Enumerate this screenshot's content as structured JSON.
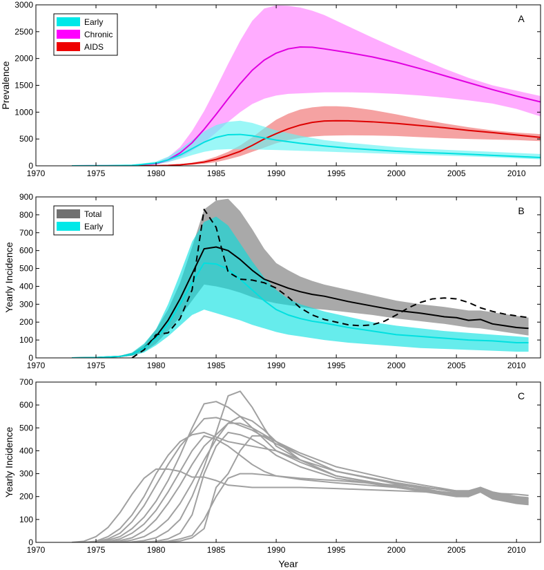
{
  "chart_data": [
    {
      "panel": "A",
      "type": "area",
      "panel_label": "A",
      "xlabel": "",
      "ylabel": "Prevalence",
      "xlim": [
        1970,
        2012
      ],
      "ylim": [
        0,
        3000
      ],
      "xticks": [
        1970,
        1975,
        1980,
        1985,
        1990,
        1995,
        2000,
        2005,
        2010
      ],
      "yticks": [
        0,
        500,
        1000,
        1500,
        2000,
        2500,
        3000
      ],
      "legend_position": "top-left",
      "series": [
        {
          "name": "Chronic",
          "color": "#e000e0",
          "band_color": "#ff80ff",
          "x": [
            1973,
            1976,
            1978,
            1980,
            1981,
            1982,
            1983,
            1984,
            1985,
            1986,
            1987,
            1988,
            1989,
            1990,
            1991,
            1992,
            1993,
            1994,
            1996,
            1998,
            2000,
            2002,
            2004,
            2006,
            2008,
            2010,
            2012
          ],
          "mean": [
            0,
            2,
            8,
            40,
            110,
            240,
            430,
            680,
            960,
            1250,
            1530,
            1780,
            1970,
            2100,
            2180,
            2215,
            2210,
            2180,
            2110,
            2030,
            1930,
            1810,
            1680,
            1550,
            1420,
            1300,
            1190
          ],
          "lower": [
            0,
            1,
            5,
            25,
            70,
            150,
            280,
            430,
            620,
            820,
            1000,
            1150,
            1250,
            1310,
            1340,
            1350,
            1360,
            1370,
            1370,
            1360,
            1340,
            1310,
            1270,
            1220,
            1160,
            1060,
            920
          ],
          "upper": [
            0,
            3,
            12,
            60,
            160,
            350,
            650,
            1020,
            1450,
            1900,
            2330,
            2700,
            2930,
            2990,
            2980,
            2950,
            2890,
            2810,
            2600,
            2390,
            2190,
            2000,
            1810,
            1640,
            1500,
            1400,
            1300
          ]
        },
        {
          "name": "AIDS",
          "color": "#dd0000",
          "band_color": "#f07070",
          "x": [
            1973,
            1978,
            1980,
            1981,
            1982,
            1983,
            1984,
            1985,
            1986,
            1987,
            1988,
            1989,
            1990,
            1991,
            1992,
            1993,
            1994,
            1995,
            1996,
            1998,
            2000,
            2002,
            2004,
            2006,
            2008,
            2010,
            2012
          ],
          "mean": [
            0,
            0,
            3,
            8,
            20,
            40,
            70,
            120,
            190,
            270,
            380,
            500,
            600,
            690,
            760,
            810,
            835,
            840,
            838,
            820,
            790,
            750,
            710,
            660,
            620,
            575,
            530
          ],
          "lower": [
            0,
            0,
            1,
            4,
            10,
            20,
            40,
            70,
            120,
            180,
            260,
            340,
            420,
            480,
            520,
            545,
            560,
            565,
            568,
            565,
            555,
            535,
            515,
            500,
            490,
            480,
            460
          ],
          "upper": [
            0,
            0,
            5,
            14,
            30,
            60,
            100,
            170,
            260,
            380,
            530,
            700,
            860,
            970,
            1050,
            1090,
            1110,
            1110,
            1100,
            1040,
            960,
            870,
            790,
            720,
            660,
            620,
            590
          ]
        },
        {
          "name": "Early",
          "color": "#00e0e0",
          "band_color": "#66f2f2",
          "x": [
            1973,
            1976,
            1978,
            1980,
            1981,
            1982,
            1983,
            1984,
            1985,
            1986,
            1987,
            1988,
            1989,
            1990,
            1992,
            1994,
            1996,
            1998,
            2000,
            2002,
            2004,
            2006,
            2008,
            2010,
            2012
          ],
          "mean": [
            0,
            3,
            10,
            50,
            110,
            200,
            320,
            440,
            530,
            580,
            585,
            560,
            520,
            480,
            420,
            370,
            330,
            300,
            270,
            250,
            235,
            215,
            195,
            175,
            155
          ],
          "lower": [
            0,
            2,
            6,
            30,
            70,
            130,
            200,
            260,
            300,
            310,
            310,
            305,
            300,
            295,
            280,
            265,
            250,
            235,
            220,
            205,
            190,
            175,
            160,
            140,
            120
          ],
          "upper": [
            0,
            4,
            15,
            80,
            170,
            310,
            480,
            640,
            760,
            820,
            840,
            800,
            730,
            660,
            560,
            480,
            430,
            390,
            350,
            320,
            300,
            280,
            260,
            240,
            220
          ]
        }
      ]
    },
    {
      "panel": "B",
      "type": "area",
      "panel_label": "B",
      "xlabel": "",
      "ylabel": "Yearly Incidence",
      "xlim": [
        1970,
        2012
      ],
      "ylim": [
        0,
        900
      ],
      "xticks": [
        1970,
        1975,
        1980,
        1985,
        1990,
        1995,
        2000,
        2005,
        2010
      ],
      "yticks": [
        0,
        100,
        200,
        300,
        400,
        500,
        600,
        700,
        800,
        900
      ],
      "legend_position": "top-left",
      "series": [
        {
          "name": "Total",
          "color": "#000000",
          "band_color": "#707070",
          "x": [
            1973,
            1975,
            1977,
            1978,
            1979,
            1980,
            1981,
            1982,
            1983,
            1984,
            1985,
            1986,
            1987,
            1988,
            1989,
            1990,
            1991,
            1992,
            1993,
            1994,
            1996,
            1998,
            2000,
            2002,
            2004,
            2005,
            2006,
            2007,
            2008,
            2009,
            2010,
            2011
          ],
          "mean": [
            0,
            2,
            8,
            20,
            55,
            120,
            210,
            330,
            470,
            610,
            620,
            600,
            550,
            490,
            440,
            415,
            390,
            370,
            355,
            345,
            315,
            290,
            265,
            250,
            230,
            225,
            210,
            215,
            190,
            180,
            170,
            165
          ],
          "lower": [
            0,
            1,
            5,
            12,
            35,
            80,
            150,
            230,
            320,
            410,
            400,
            385,
            365,
            340,
            320,
            305,
            295,
            285,
            275,
            270,
            255,
            240,
            220,
            205,
            190,
            180,
            170,
            165,
            155,
            145,
            135,
            125
          ],
          "upper": [
            0,
            3,
            12,
            28,
            75,
            160,
            270,
            420,
            620,
            830,
            880,
            890,
            820,
            720,
            610,
            530,
            490,
            455,
            430,
            410,
            380,
            350,
            320,
            300,
            285,
            275,
            265,
            265,
            255,
            245,
            235,
            225
          ]
        },
        {
          "name": "Early",
          "color": "#00e0e0",
          "band_color": "#00e0e0",
          "x": [
            1973,
            1975,
            1977,
            1978,
            1979,
            1980,
            1981,
            1982,
            1983,
            1984,
            1985,
            1986,
            1987,
            1988,
            1989,
            1990,
            1991,
            1992,
            1993,
            1994,
            1996,
            1998,
            2000,
            2002,
            2004,
            2006,
            2008,
            2010,
            2011
          ],
          "mean": [
            0,
            2,
            8,
            20,
            55,
            110,
            190,
            300,
            420,
            530,
            525,
            495,
            440,
            380,
            320,
            270,
            240,
            220,
            205,
            195,
            170,
            150,
            130,
            120,
            110,
            100,
            95,
            85,
            85
          ],
          "lower": [
            0,
            1,
            5,
            12,
            30,
            70,
            120,
            180,
            240,
            270,
            250,
            230,
            210,
            185,
            165,
            145,
            130,
            120,
            110,
            100,
            85,
            75,
            65,
            55,
            50,
            45,
            40,
            35,
            35
          ],
          "upper": [
            0,
            3,
            12,
            30,
            80,
            160,
            300,
            470,
            650,
            760,
            790,
            740,
            640,
            540,
            450,
            380,
            330,
            300,
            280,
            260,
            230,
            200,
            180,
            165,
            150,
            140,
            130,
            120,
            115
          ]
        },
        {
          "name": "",
          "line_style": "dashed",
          "color": "#000000",
          "x": [
            1978,
            1979,
            1980,
            1981,
            1982,
            1983,
            1984,
            1985,
            1985.5,
            1986,
            1987,
            1988,
            1989,
            1990,
            1991,
            1992,
            1993,
            1994,
            1995,
            1996,
            1997,
            1998,
            1999,
            2000,
            2001,
            2002,
            2003,
            2004,
            2005,
            2006,
            2007,
            2008,
            2009,
            2010,
            2011
          ],
          "values": [
            0,
            45,
            130,
            140,
            220,
            380,
            830,
            730,
            600,
            480,
            440,
            435,
            420,
            390,
            340,
            280,
            240,
            215,
            200,
            185,
            180,
            185,
            205,
            240,
            280,
            310,
            330,
            335,
            330,
            310,
            280,
            260,
            245,
            235,
            225
          ]
        }
      ]
    },
    {
      "panel": "C",
      "type": "line",
      "panel_label": "C",
      "xlabel": "Year",
      "ylabel": "Yearly Incidence",
      "xlim": [
        1970,
        2012
      ],
      "ylim": [
        0,
        700
      ],
      "xticks": [
        1970,
        1975,
        1980,
        1985,
        1990,
        1995,
        2000,
        2005,
        2010
      ],
      "yticks": [
        0,
        100,
        200,
        300,
        400,
        500,
        600,
        700
      ],
      "x": [
        1973,
        1974,
        1975,
        1976,
        1977,
        1978,
        1979,
        1980,
        1981,
        1982,
        1983,
        1984,
        1985,
        1986,
        1987,
        1988,
        1989,
        1990,
        1992,
        1995,
        2000,
        2005,
        2006,
        2007,
        2008,
        2010,
        2011
      ],
      "series": [
        {
          "values": [
            0,
            5,
            25,
            65,
            130,
            210,
            280,
            320,
            320,
            310,
            285,
            285,
            270,
            250,
            245,
            240,
            240,
            240,
            240,
            235,
            225,
            215,
            215,
            225,
            205,
            195,
            190
          ]
        },
        {
          "values": [
            0,
            0,
            5,
            25,
            60,
            120,
            200,
            300,
            380,
            440,
            470,
            480,
            460,
            440,
            430,
            420,
            410,
            400,
            360,
            310,
            260,
            220,
            220,
            230,
            210,
            195,
            185
          ]
        },
        {
          "values": [
            0,
            0,
            3,
            15,
            40,
            90,
            160,
            250,
            340,
            420,
            480,
            540,
            545,
            530,
            510,
            490,
            460,
            430,
            380,
            310,
            260,
            220,
            220,
            240,
            215,
            200,
            195
          ]
        },
        {
          "values": [
            0,
            0,
            2,
            10,
            25,
            60,
            110,
            180,
            270,
            380,
            500,
            605,
            615,
            590,
            550,
            500,
            450,
            400,
            350,
            290,
            245,
            210,
            205,
            225,
            200,
            185,
            175
          ]
        },
        {
          "values": [
            0,
            0,
            1,
            5,
            15,
            40,
            80,
            140,
            220,
            310,
            400,
            465,
            450,
            420,
            380,
            340,
            310,
            290,
            275,
            260,
            240,
            215,
            215,
            235,
            210,
            190,
            180
          ]
        },
        {
          "values": [
            0,
            0,
            0,
            2,
            8,
            20,
            50,
            100,
            170,
            250,
            340,
            420,
            470,
            520,
            520,
            500,
            470,
            440,
            380,
            310,
            255,
            210,
            210,
            235,
            205,
            185,
            175
          ]
        },
        {
          "values": [
            0,
            0,
            0,
            0,
            3,
            10,
            25,
            55,
            100,
            170,
            260,
            360,
            450,
            520,
            550,
            530,
            490,
            440,
            360,
            290,
            245,
            205,
            205,
            230,
            200,
            180,
            170
          ]
        },
        {
          "values": [
            0,
            0,
            0,
            0,
            0,
            2,
            8,
            20,
            50,
            100,
            200,
            330,
            480,
            640,
            660,
            590,
            500,
            420,
            360,
            290,
            240,
            200,
            200,
            220,
            190,
            170,
            165
          ]
        },
        {
          "values": [
            0,
            0,
            0,
            0,
            0,
            0,
            2,
            5,
            15,
            40,
            120,
            300,
            420,
            480,
            470,
            450,
            420,
            380,
            330,
            280,
            240,
            205,
            200,
            225,
            195,
            175,
            165
          ]
        },
        {
          "values": [
            0,
            0,
            0,
            0,
            0,
            0,
            0,
            1,
            5,
            15,
            30,
            100,
            200,
            280,
            300,
            300,
            295,
            290,
            280,
            270,
            250,
            225,
            225,
            235,
            215,
            210,
            205
          ]
        },
        {
          "values": [
            0,
            0,
            0,
            0,
            0,
            0,
            0,
            0,
            2,
            6,
            20,
            60,
            240,
            300,
            400,
            465,
            465,
            440,
            390,
            330,
            270,
            225,
            225,
            240,
            220,
            200,
            190
          ]
        }
      ],
      "line_color": "#a0a0a0"
    }
  ]
}
